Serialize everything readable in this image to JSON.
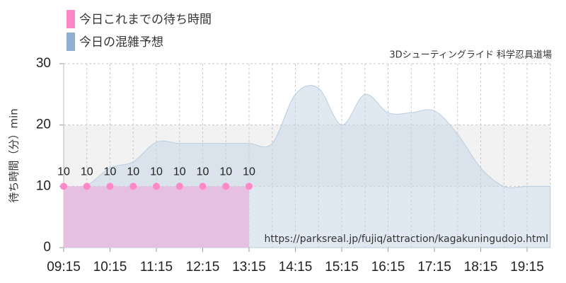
{
  "chart_data": {
    "type": "area",
    "subtitle": "3Dシューティングライド 科学忍具道場",
    "ylabel": "待ち時間（分）min",
    "watermark": "https://parksreal.jp/fujiq/attraction/kagakuningudojo.html",
    "categories": [
      "09:15",
      null,
      "10:15",
      null,
      "11:15",
      null,
      "12:15",
      null,
      "13:15",
      null,
      "14:15",
      null,
      "15:15",
      null,
      "16:15",
      null,
      "17:15",
      null,
      "18:15",
      null,
      "19:15",
      null
    ],
    "series": [
      {
        "name": "今日これまでの待ち時間",
        "color": "#ff88c8",
        "values": [
          10,
          10,
          10,
          10,
          10,
          10,
          10,
          10,
          10,
          null,
          null,
          null,
          null,
          null,
          null,
          null,
          null,
          null,
          null,
          null,
          null,
          null
        ]
      },
      {
        "name": "今日の混雑予想",
        "color": "#8fb0cf",
        "values": [
          10,
          10.2,
          13,
          14,
          17.2,
          17,
          17,
          17,
          17,
          17,
          25,
          26,
          20,
          25,
          22,
          22,
          22.3,
          18.5,
          13,
          10,
          10,
          10
        ]
      }
    ],
    "ylim": [
      0,
      30
    ],
    "yticks": [
      0,
      10,
      20,
      30
    ],
    "grid": true
  }
}
